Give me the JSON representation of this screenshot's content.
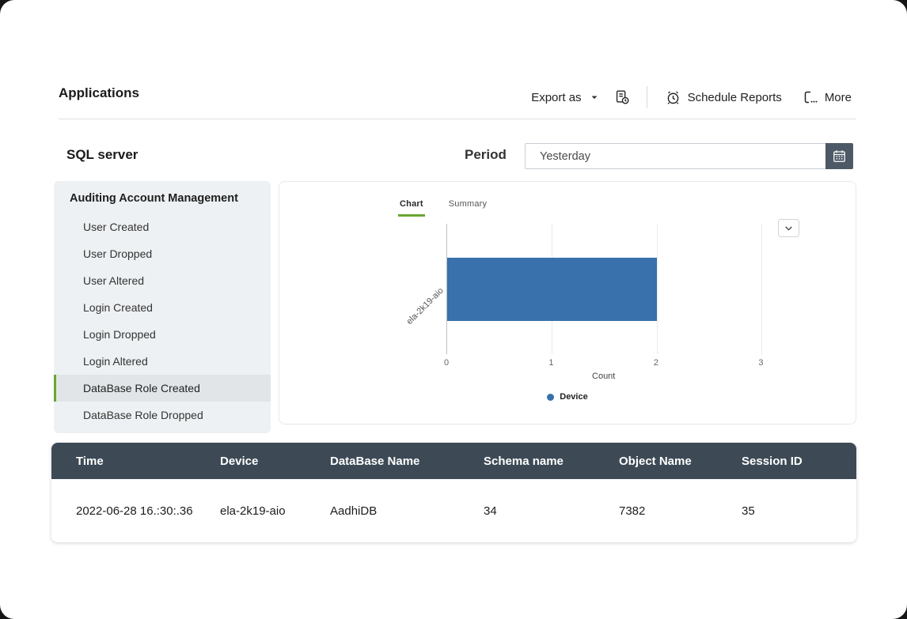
{
  "header": {
    "title": "Applications"
  },
  "toolbar": {
    "export_label": "Export as",
    "schedule_label": "Schedule Reports",
    "more_label": "More"
  },
  "report": {
    "title": "SQL server",
    "period_label": "Period",
    "period_value": "Yesterday"
  },
  "sidebar": {
    "title": "Auditing Account Management",
    "items": [
      {
        "label": "User Created",
        "selected": false
      },
      {
        "label": "User Dropped",
        "selected": false
      },
      {
        "label": "User Altered",
        "selected": false
      },
      {
        "label": "Login Created",
        "selected": false
      },
      {
        "label": "Login Dropped",
        "selected": false
      },
      {
        "label": "Login Altered",
        "selected": false
      },
      {
        "label": "DataBase Role Created",
        "selected": true
      },
      {
        "label": "DataBase Role Dropped",
        "selected": false
      }
    ]
  },
  "tabs": [
    {
      "label": "Chart",
      "active": true
    },
    {
      "label": "Summary",
      "active": false
    }
  ],
  "chart_data": {
    "type": "bar",
    "orientation": "horizontal",
    "title": "",
    "categories": [
      "ela-2k19-aio"
    ],
    "values": [
      2
    ],
    "xlabel": "Count",
    "ylabel": "",
    "xlim": [
      0,
      3.45
    ],
    "ticks": [
      0,
      1,
      2,
      3
    ],
    "grid": true,
    "bar_color": "#3871ab",
    "legend_position": "bottom",
    "legend": [
      {
        "label": "Device",
        "color": "#3871ab"
      }
    ]
  },
  "table": {
    "headers": [
      "Time",
      "Device",
      "DataBase Name",
      "Schema name",
      "Object Name",
      "Session ID"
    ],
    "rows": [
      [
        "2022-06-28 16.:30:.36",
        "ela-2k19-aio",
        "AadhiDB",
        "34",
        "7382",
        "35"
      ]
    ]
  },
  "colors": {
    "accent_green": "#69a532",
    "bar_blue": "#3871ab",
    "table_header_bg": "#3d4a56",
    "calendar_button_bg": "#4d5966"
  }
}
